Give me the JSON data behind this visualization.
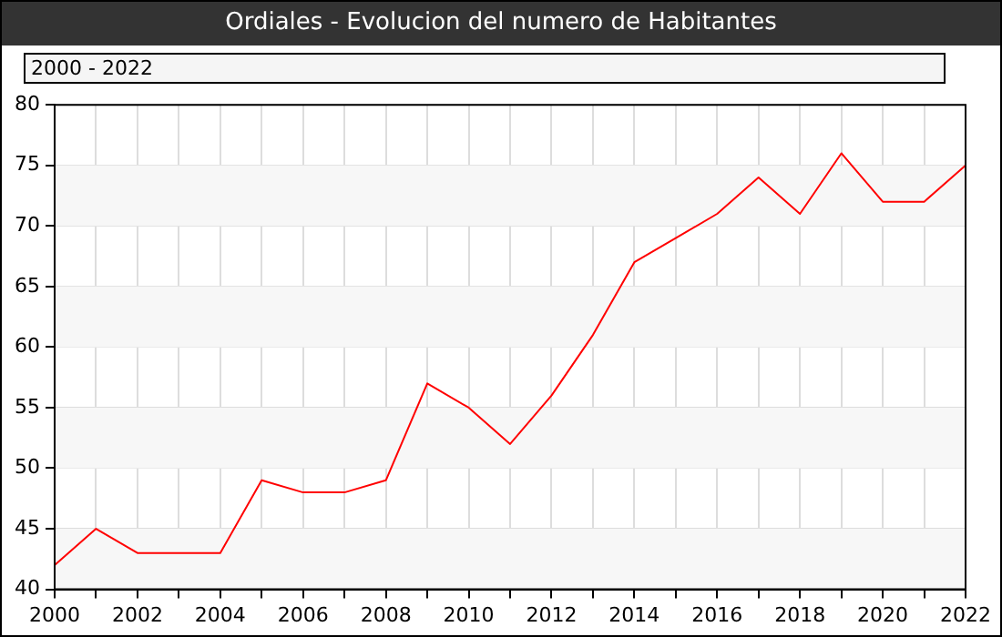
{
  "chart_data": {
    "type": "line",
    "title": "Ordiales - Evolucion del numero de Habitantes",
    "subtitle": "2000 - 2022",
    "x": [
      2000,
      2001,
      2002,
      2003,
      2004,
      2005,
      2006,
      2007,
      2008,
      2009,
      2010,
      2011,
      2012,
      2013,
      2014,
      2015,
      2016,
      2017,
      2018,
      2019,
      2020,
      2021,
      2022
    ],
    "series": [
      {
        "color": "#ff0000",
        "values": [
          42,
          45,
          43,
          43,
          43,
          49,
          48,
          48,
          49,
          57,
          55,
          52,
          56,
          61,
          67,
          69,
          71,
          74,
          71,
          76,
          72,
          72,
          75
        ]
      }
    ],
    "xlim": [
      2000,
      2022
    ],
    "xticks": [
      2000,
      {
        "value": 2001,
        "label": null
      },
      2002,
      {
        "value": 2003,
        "label": null
      },
      2004,
      {
        "value": 2005,
        "label": null
      },
      2006,
      {
        "value": 2007,
        "label": null
      },
      2008,
      {
        "value": 2009,
        "label": null
      },
      2010,
      {
        "value": 2011,
        "label": null
      },
      2012,
      {
        "value": 2013,
        "label": null
      },
      2014,
      {
        "value": 2015,
        "label": null
      },
      2016,
      {
        "value": 2017,
        "label": null
      },
      2018,
      {
        "value": 2019,
        "label": null
      },
      2020,
      {
        "value": 2021,
        "label": null
      },
      2022
    ],
    "ylim": [
      40,
      80
    ],
    "yticks": [
      40,
      45,
      50,
      55,
      60,
      65,
      70,
      75,
      80
    ],
    "bands": [
      {
        "axis": "y",
        "from": 40,
        "to": 45,
        "color": "#f7f7f7"
      },
      {
        "axis": "y",
        "from": 50,
        "to": 55,
        "color": "#f7f7f7"
      },
      {
        "axis": "y",
        "from": 60,
        "to": 65,
        "color": "#f7f7f7"
      },
      {
        "axis": "y",
        "from": 70,
        "to": 75,
        "color": "#f7f7f7"
      }
    ],
    "grid": true,
    "legend": false,
    "marker": "none",
    "line_style": "solid"
  }
}
